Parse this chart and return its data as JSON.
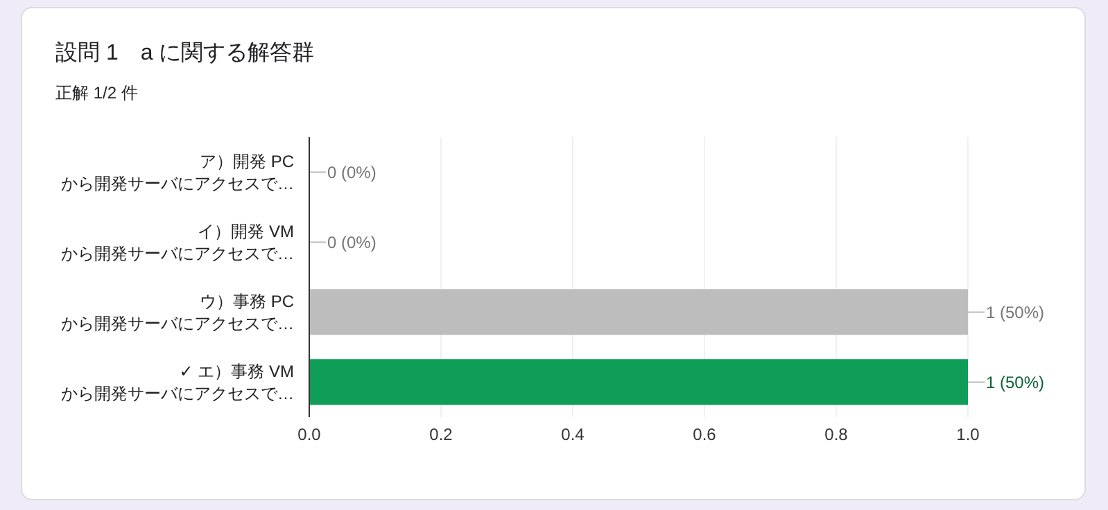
{
  "chart_data": {
    "type": "bar",
    "orientation": "horizontal",
    "title": "設問 1　a に関する解答群",
    "subtitle": "正解 1/2 件",
    "categories": [
      "ア）開発 PC\nから開発サーバにアクセスで…",
      "イ）開発 VM\nから開発サーバにアクセスで…",
      "ウ）事務 PC\nから開発サーバにアクセスで…",
      "✓ エ）事務 VM\nから開発サーバにアクセスで…"
    ],
    "values": [
      0,
      0,
      1,
      1
    ],
    "colors": [
      "#bdbdbd",
      "#bdbdbd",
      "#bdbdbd",
      "#0f9d58"
    ],
    "value_labels": [
      "0 (0%)",
      "0 (0%)",
      "1 (50%)",
      "1 (50%)"
    ],
    "xlim": [
      0,
      1
    ],
    "xticks": [
      {
        "value": 0,
        "label": "0.0"
      },
      {
        "value": 0.2,
        "label": "0.2"
      },
      {
        "value": 0.4,
        "label": "0.4"
      },
      {
        "value": 0.6,
        "label": "0.6"
      },
      {
        "value": 0.8,
        "label": "0.8"
      },
      {
        "value": 1,
        "label": "1.0"
      }
    ],
    "grid": "x",
    "legend": false
  }
}
